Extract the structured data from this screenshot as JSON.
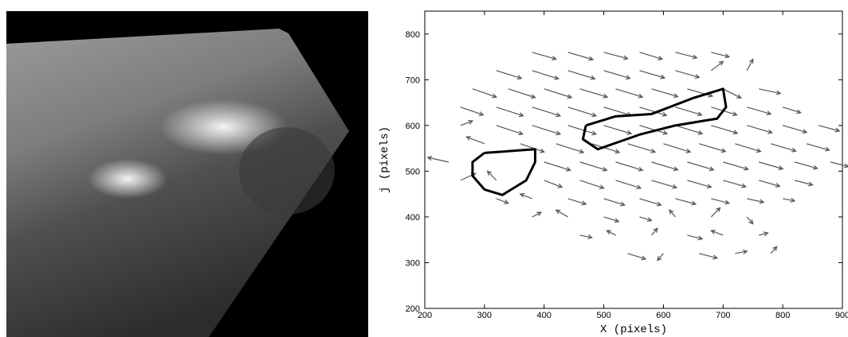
{
  "chart_data": {
    "type": "quiver",
    "xlabel": "X (pixels)",
    "ylabel": "j (pixels)",
    "xlim": [
      200,
      900
    ],
    "ylim": [
      200,
      850
    ],
    "xticks": [
      200,
      300,
      400,
      500,
      600,
      700,
      800,
      900
    ],
    "yticks": [
      200,
      300,
      400,
      500,
      600,
      700,
      800
    ],
    "color": "#555555",
    "contour_color": "#000000",
    "arrows": [
      [
        380,
        760,
        40,
        -15
      ],
      [
        440,
        760,
        42,
        -16
      ],
      [
        500,
        760,
        40,
        -14
      ],
      [
        560,
        760,
        38,
        -15
      ],
      [
        620,
        760,
        36,
        -12
      ],
      [
        680,
        760,
        30,
        -10
      ],
      [
        320,
        720,
        42,
        -17
      ],
      [
        380,
        720,
        44,
        -18
      ],
      [
        440,
        720,
        45,
        -18
      ],
      [
        500,
        720,
        44,
        -17
      ],
      [
        560,
        720,
        42,
        -16
      ],
      [
        620,
        720,
        40,
        -15
      ],
      [
        680,
        720,
        20,
        20
      ],
      [
        740,
        720,
        10,
        25
      ],
      [
        280,
        680,
        40,
        -18
      ],
      [
        340,
        680,
        45,
        -19
      ],
      [
        400,
        680,
        46,
        -19
      ],
      [
        460,
        680,
        46,
        -18
      ],
      [
        520,
        680,
        45,
        -18
      ],
      [
        580,
        680,
        44,
        -17
      ],
      [
        640,
        680,
        42,
        -16
      ],
      [
        700,
        680,
        30,
        -20
      ],
      [
        760,
        680,
        36,
        -10
      ],
      [
        260,
        640,
        38,
        -17
      ],
      [
        320,
        640,
        45,
        -19
      ],
      [
        380,
        640,
        47,
        -19
      ],
      [
        440,
        640,
        47,
        -19
      ],
      [
        500,
        640,
        46,
        -18
      ],
      [
        560,
        640,
        45,
        -18
      ],
      [
        620,
        640,
        44,
        -17
      ],
      [
        680,
        640,
        43,
        -17
      ],
      [
        740,
        640,
        40,
        -15
      ],
      [
        800,
        640,
        30,
        -12
      ],
      [
        260,
        600,
        20,
        10
      ],
      [
        320,
        600,
        44,
        -19
      ],
      [
        380,
        600,
        47,
        -19
      ],
      [
        440,
        600,
        47,
        -19
      ],
      [
        500,
        600,
        46,
        -18
      ],
      [
        560,
        600,
        46,
        -18
      ],
      [
        620,
        600,
        45,
        -18
      ],
      [
        680,
        600,
        44,
        -17
      ],
      [
        740,
        600,
        42,
        -16
      ],
      [
        800,
        600,
        40,
        -15
      ],
      [
        860,
        600,
        35,
        -12
      ],
      [
        300,
        560,
        -30,
        15
      ],
      [
        360,
        560,
        40,
        -18
      ],
      [
        420,
        560,
        46,
        -19
      ],
      [
        480,
        560,
        46,
        -19
      ],
      [
        540,
        560,
        46,
        -18
      ],
      [
        600,
        560,
        45,
        -18
      ],
      [
        660,
        560,
        44,
        -17
      ],
      [
        720,
        560,
        43,
        -17
      ],
      [
        780,
        560,
        42,
        -16
      ],
      [
        840,
        560,
        38,
        -14
      ],
      [
        240,
        520,
        -35,
        10
      ],
      [
        400,
        520,
        44,
        -18
      ],
      [
        460,
        520,
        45,
        -18
      ],
      [
        520,
        520,
        45,
        -18
      ],
      [
        580,
        520,
        44,
        -17
      ],
      [
        640,
        520,
        44,
        -17
      ],
      [
        700,
        520,
        42,
        -16
      ],
      [
        760,
        520,
        40,
        -15
      ],
      [
        820,
        520,
        38,
        -14
      ],
      [
        880,
        520,
        30,
        -10
      ],
      [
        260,
        480,
        25,
        15
      ],
      [
        320,
        480,
        -15,
        20
      ],
      [
        400,
        480,
        30,
        -15
      ],
      [
        460,
        480,
        40,
        -17
      ],
      [
        520,
        480,
        42,
        -17
      ],
      [
        580,
        480,
        42,
        -16
      ],
      [
        640,
        480,
        40,
        -15
      ],
      [
        700,
        480,
        38,
        -14
      ],
      [
        760,
        480,
        35,
        -13
      ],
      [
        820,
        480,
        30,
        -10
      ],
      [
        320,
        440,
        20,
        -10
      ],
      [
        380,
        440,
        -20,
        10
      ],
      [
        440,
        440,
        30,
        -12
      ],
      [
        500,
        440,
        35,
        -14
      ],
      [
        560,
        440,
        36,
        -14
      ],
      [
        620,
        440,
        34,
        -12
      ],
      [
        680,
        440,
        30,
        -10
      ],
      [
        740,
        440,
        28,
        -8
      ],
      [
        800,
        440,
        20,
        -5
      ],
      [
        380,
        400,
        15,
        10
      ],
      [
        440,
        400,
        -20,
        15
      ],
      [
        500,
        400,
        25,
        -10
      ],
      [
        560,
        400,
        20,
        -8
      ],
      [
        620,
        400,
        -10,
        15
      ],
      [
        680,
        400,
        15,
        20
      ],
      [
        740,
        400,
        10,
        -15
      ],
      [
        460,
        360,
        20,
        -5
      ],
      [
        520,
        360,
        -15,
        10
      ],
      [
        580,
        360,
        10,
        15
      ],
      [
        640,
        360,
        25,
        -8
      ],
      [
        700,
        360,
        -20,
        10
      ],
      [
        760,
        360,
        15,
        5
      ],
      [
        540,
        320,
        30,
        -12
      ],
      [
        600,
        320,
        -10,
        -15
      ],
      [
        660,
        320,
        30,
        -10
      ],
      [
        720,
        320,
        20,
        5
      ],
      [
        780,
        320,
        10,
        15
      ]
    ],
    "contours": [
      {
        "x": [
          300,
          385,
          385,
          370,
          330,
          300,
          280,
          280,
          300
        ],
        "y": [
          540,
          548,
          520,
          480,
          448,
          460,
          490,
          520,
          540
        ]
      },
      {
        "x": [
          470,
          520,
          580,
          650,
          700,
          705,
          690,
          620,
          560,
          490,
          465,
          470
        ],
        "y": [
          600,
          620,
          625,
          660,
          680,
          640,
          615,
          600,
          580,
          548,
          570,
          600
        ]
      }
    ]
  }
}
